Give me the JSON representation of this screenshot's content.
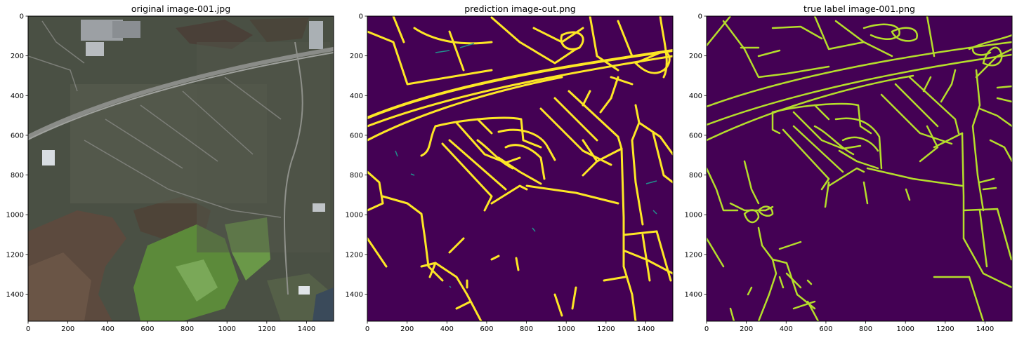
{
  "figure": {
    "panels": [
      {
        "title": "original image-001.jpg",
        "kind": "aerial-photo",
        "xticks": [
          "0",
          "200",
          "400",
          "600",
          "800",
          "1000",
          "1200",
          "1400"
        ],
        "yticks": [
          "0",
          "200",
          "400",
          "600",
          "800",
          "1000",
          "1200",
          "1400"
        ]
      },
      {
        "title": "prediction image-out.png",
        "kind": "road-mask",
        "colors": {
          "background": "#440154",
          "road": "#fde725"
        },
        "xticks": [
          "0",
          "200",
          "400",
          "600",
          "800",
          "1000",
          "1200",
          "1400"
        ],
        "yticks": [
          "0",
          "200",
          "400",
          "600",
          "800",
          "1000",
          "1200",
          "1400"
        ]
      },
      {
        "title": "true label image-001.png",
        "kind": "road-mask",
        "colors": {
          "background": "#440154",
          "road": "#b5de2b"
        },
        "xticks": [
          "0",
          "200",
          "400",
          "600",
          "800",
          "1000",
          "1200",
          "1400"
        ],
        "yticks": [
          "0",
          "200",
          "400",
          "600",
          "800",
          "1000",
          "1200",
          "1400"
        ]
      }
    ]
  },
  "chart_data": [
    {
      "type": "heatmap",
      "title": "original image-001.jpg",
      "xlim": [
        0,
        1536
      ],
      "ylim": [
        1536,
        0
      ],
      "xticks": [
        0,
        200,
        400,
        600,
        800,
        1000,
        1200,
        1400
      ],
      "yticks": [
        0,
        200,
        400,
        600,
        800,
        1000,
        1200,
        1400
      ],
      "grid": false
    },
    {
      "type": "heatmap",
      "title": "prediction image-out.png",
      "xlim": [
        0,
        1536
      ],
      "ylim": [
        1536,
        0
      ],
      "xticks": [
        0,
        200,
        400,
        600,
        800,
        1000,
        1200,
        1400
      ],
      "yticks": [
        0,
        200,
        400,
        600,
        800,
        1000,
        1200,
        1400
      ],
      "grid": false
    },
    {
      "type": "heatmap",
      "title": "true label image-001.png",
      "xlim": [
        0,
        1536
      ],
      "ylim": [
        1536,
        0
      ],
      "xticks": [
        0,
        200,
        400,
        600,
        800,
        1000,
        1200,
        1400
      ],
      "yticks": [
        0,
        200,
        400,
        600,
        800,
        1000,
        1200,
        1400
      ],
      "grid": false
    }
  ]
}
